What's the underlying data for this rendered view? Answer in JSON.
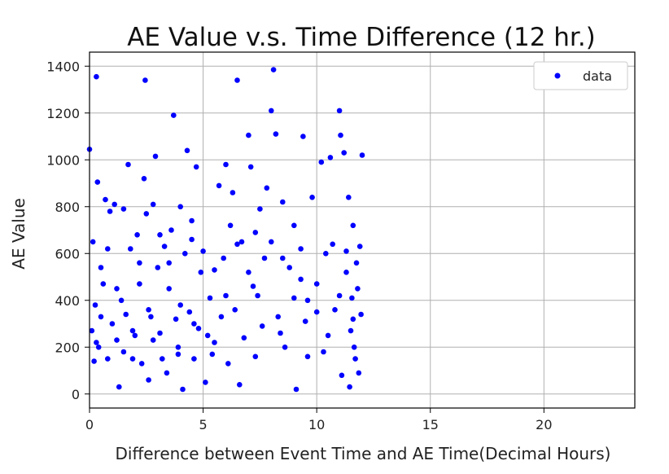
{
  "chart_data": {
    "type": "scatter",
    "title": "AE Value v.s. Time Difference (12 hr.)",
    "xlabel": "Difference between Event Time and AE Time(Decimal Hours)",
    "ylabel": "AE Value",
    "xlim": [
      0,
      24
    ],
    "ylim": [
      -60,
      1460
    ],
    "xticks": [
      0,
      5,
      10,
      15,
      20
    ],
    "yticks": [
      0,
      200,
      400,
      600,
      800,
      1000,
      1200,
      1400
    ],
    "grid": true,
    "legend_position": "top-right",
    "marker_color": "#0000ff",
    "series": [
      {
        "name": "data",
        "points": [
          [
            0.0,
            1045
          ],
          [
            0.1,
            270
          ],
          [
            0.15,
            650
          ],
          [
            0.2,
            140
          ],
          [
            0.25,
            380
          ],
          [
            0.3,
            1355
          ],
          [
            0.35,
            905
          ],
          [
            0.4,
            200
          ],
          [
            0.5,
            540
          ],
          [
            0.6,
            470
          ],
          [
            0.7,
            830
          ],
          [
            0.8,
            150
          ],
          [
            0.9,
            780
          ],
          [
            1.0,
            300
          ],
          [
            1.1,
            810
          ],
          [
            1.2,
            230
          ],
          [
            1.3,
            30
          ],
          [
            1.4,
            400
          ],
          [
            1.5,
            790
          ],
          [
            1.6,
            340
          ],
          [
            1.7,
            980
          ],
          [
            1.8,
            620
          ],
          [
            1.9,
            150
          ],
          [
            2.0,
            250
          ],
          [
            2.1,
            680
          ],
          [
            2.2,
            470
          ],
          [
            2.3,
            130
          ],
          [
            2.4,
            920
          ],
          [
            2.45,
            1340
          ],
          [
            2.5,
            770
          ],
          [
            2.6,
            60
          ],
          [
            2.7,
            330
          ],
          [
            2.8,
            810
          ],
          [
            2.9,
            1015
          ],
          [
            3.0,
            540
          ],
          [
            3.1,
            260
          ],
          [
            3.2,
            150
          ],
          [
            3.3,
            630
          ],
          [
            3.4,
            90
          ],
          [
            3.5,
            450
          ],
          [
            3.6,
            700
          ],
          [
            3.7,
            1190
          ],
          [
            3.8,
            320
          ],
          [
            3.9,
            200
          ],
          [
            4.0,
            800
          ],
          [
            4.1,
            20
          ],
          [
            4.2,
            600
          ],
          [
            4.3,
            1040
          ],
          [
            4.4,
            350
          ],
          [
            4.5,
            740
          ],
          [
            4.6,
            150
          ],
          [
            4.7,
            970
          ],
          [
            4.8,
            280
          ],
          [
            4.9,
            520
          ],
          [
            5.0,
            610
          ],
          [
            5.1,
            50
          ],
          [
            5.3,
            410
          ],
          [
            5.5,
            220
          ],
          [
            5.7,
            890
          ],
          [
            5.8,
            330
          ],
          [
            5.9,
            580
          ],
          [
            6.0,
            980
          ],
          [
            6.1,
            130
          ],
          [
            6.2,
            720
          ],
          [
            6.3,
            860
          ],
          [
            6.5,
            1340
          ],
          [
            6.6,
            40
          ],
          [
            6.7,
            650
          ],
          [
            6.8,
            240
          ],
          [
            7.0,
            1105
          ],
          [
            7.1,
            970
          ],
          [
            7.2,
            460
          ],
          [
            7.3,
            160
          ],
          [
            7.5,
            790
          ],
          [
            7.6,
            290
          ],
          [
            7.7,
            580
          ],
          [
            7.8,
            880
          ],
          [
            8.0,
            1210
          ],
          [
            8.1,
            1385
          ],
          [
            8.2,
            1110
          ],
          [
            8.3,
            330
          ],
          [
            8.5,
            820
          ],
          [
            8.6,
            200
          ],
          [
            8.8,
            540
          ],
          [
            9.0,
            410
          ],
          [
            9.1,
            20
          ],
          [
            9.3,
            620
          ],
          [
            9.4,
            1100
          ],
          [
            9.5,
            310
          ],
          [
            9.6,
            160
          ],
          [
            9.8,
            840
          ],
          [
            10.0,
            470
          ],
          [
            10.2,
            990
          ],
          [
            10.4,
            600
          ],
          [
            10.6,
            1010
          ],
          [
            10.8,
            360
          ],
          [
            11.0,
            1210
          ],
          [
            11.05,
            1105
          ],
          [
            11.1,
            80
          ],
          [
            11.2,
            1030
          ],
          [
            11.3,
            520
          ],
          [
            11.4,
            840
          ],
          [
            11.5,
            270
          ],
          [
            11.6,
            720
          ],
          [
            11.7,
            150
          ],
          [
            11.8,
            450
          ],
          [
            11.9,
            630
          ],
          [
            12.0,
            1020
          ],
          [
            11.95,
            340
          ],
          [
            11.85,
            90
          ],
          [
            11.75,
            560
          ],
          [
            11.65,
            200
          ],
          [
            11.55,
            410
          ],
          [
            11.45,
            30
          ],
          [
            0.5,
            330
          ],
          [
            1.2,
            450
          ],
          [
            2.2,
            560
          ],
          [
            3.1,
            680
          ],
          [
            4.0,
            380
          ],
          [
            5.2,
            250
          ],
          [
            6.0,
            420
          ],
          [
            7.0,
            520
          ],
          [
            8.0,
            650
          ],
          [
            9.0,
            720
          ],
          [
            10.0,
            350
          ],
          [
            10.5,
            250
          ],
          [
            11.0,
            420
          ],
          [
            0.8,
            620
          ],
          [
            1.9,
            270
          ],
          [
            2.8,
            230
          ],
          [
            3.9,
            170
          ],
          [
            4.6,
            300
          ],
          [
            5.5,
            530
          ],
          [
            6.4,
            360
          ],
          [
            7.3,
            690
          ],
          [
            8.4,
            260
          ],
          [
            9.3,
            490
          ],
          [
            10.3,
            180
          ],
          [
            11.3,
            610
          ],
          [
            0.3,
            220
          ],
          [
            1.5,
            180
          ],
          [
            2.6,
            360
          ],
          [
            3.5,
            560
          ],
          [
            4.5,
            660
          ],
          [
            5.4,
            170
          ],
          [
            6.5,
            640
          ],
          [
            7.4,
            420
          ],
          [
            8.5,
            580
          ],
          [
            9.6,
            400
          ],
          [
            10.7,
            640
          ],
          [
            11.6,
            320
          ]
        ]
      }
    ]
  }
}
